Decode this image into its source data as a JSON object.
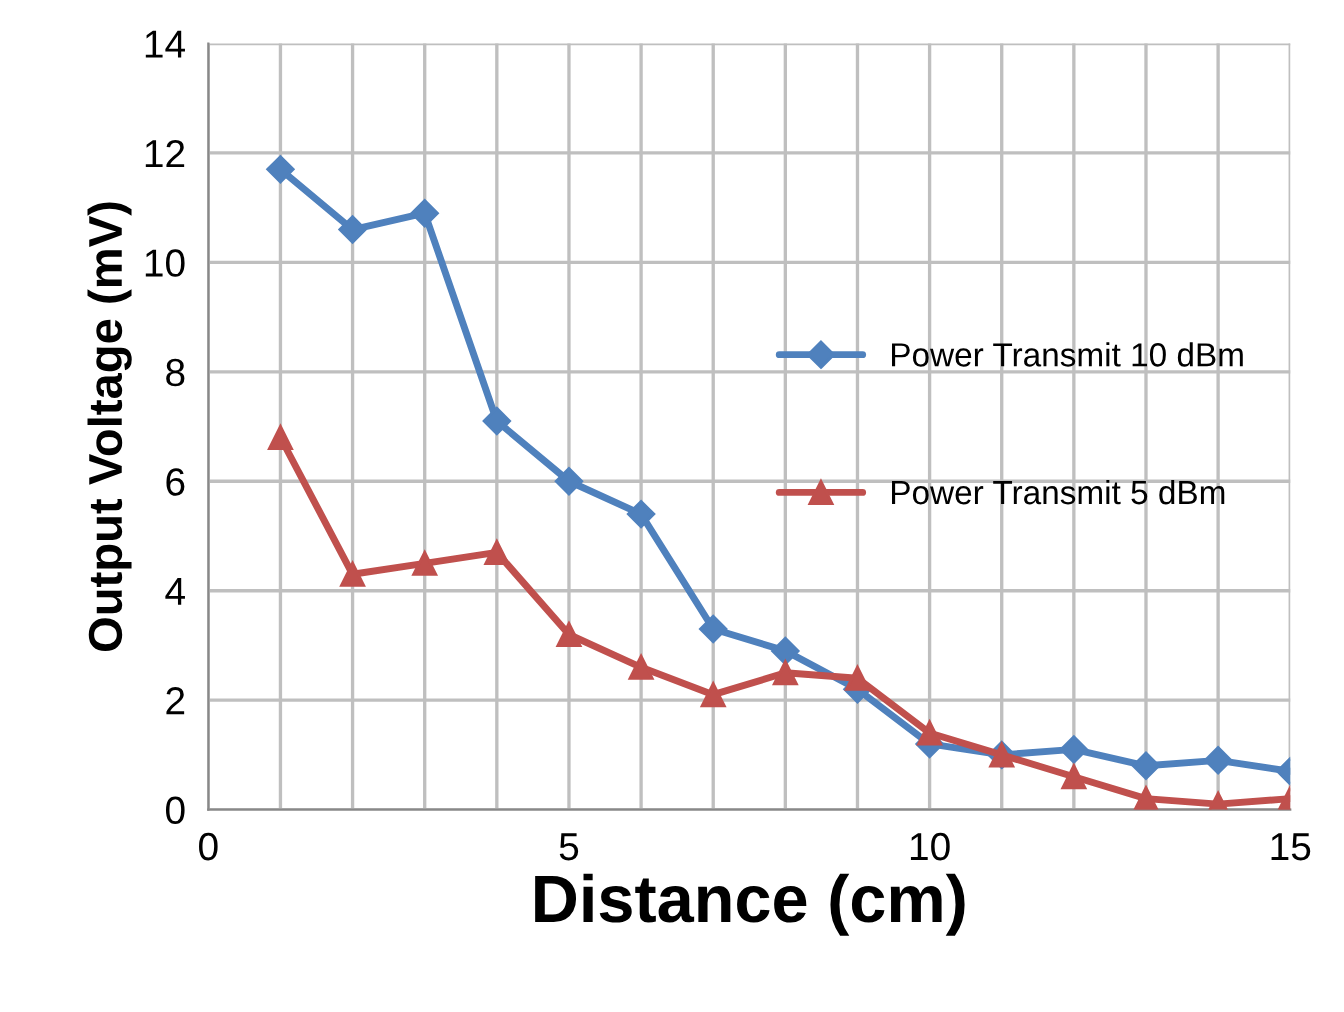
{
  "chart_data": {
    "type": "line",
    "xlabel": "Distance (cm)",
    "ylabel": "Output Voltage (mV)",
    "x": [
      1,
      2,
      3,
      4,
      5,
      6,
      7,
      8,
      9,
      10,
      11,
      12,
      13,
      14,
      15
    ],
    "series": [
      {
        "name": "Power Transmit 10 dBm",
        "color": "#4f81bd",
        "marker": "diamond",
        "values": [
          11.7,
          10.6,
          10.9,
          7.1,
          6.0,
          5.4,
          3.3,
          2.9,
          2.2,
          1.2,
          1.0,
          1.1,
          0.8,
          0.9,
          0.7
        ]
      },
      {
        "name": "Power Transmit 5 dBm",
        "color": "#c0504d",
        "marker": "triangle",
        "values": [
          6.8,
          4.3,
          4.5,
          4.7,
          3.2,
          2.6,
          2.1,
          2.5,
          2.4,
          1.4,
          1.0,
          0.6,
          0.2,
          0.1,
          0.2
        ]
      }
    ],
    "xlim": [
      0,
      15
    ],
    "ylim": [
      0,
      14
    ],
    "xticks": [
      0,
      {
        "value": 1,
        "label": null
      },
      {
        "value": 2,
        "label": null
      },
      {
        "value": 3,
        "label": null
      },
      {
        "value": 4,
        "label": null
      },
      5,
      {
        "value": 6,
        "label": null
      },
      {
        "value": 7,
        "label": null
      },
      {
        "value": 8,
        "label": null
      },
      {
        "value": 9,
        "label": null
      },
      10,
      {
        "value": 11,
        "label": null
      },
      {
        "value": 12,
        "label": null
      },
      {
        "value": 13,
        "label": null
      },
      {
        "value": 14,
        "label": null
      },
      15
    ],
    "yticks": [
      0,
      2,
      4,
      6,
      8,
      10,
      12,
      14
    ],
    "grid": true,
    "legend": "right",
    "line_style": "solid"
  }
}
